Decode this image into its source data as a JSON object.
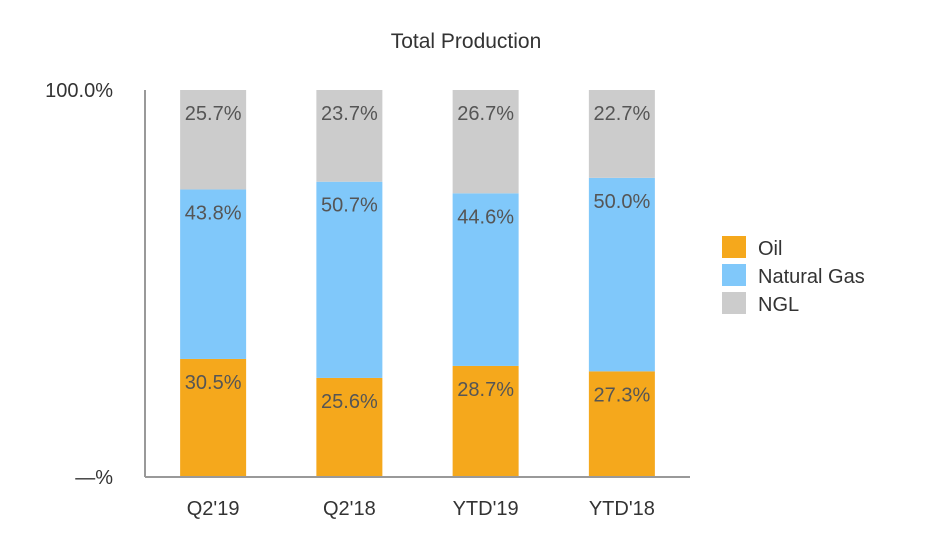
{
  "chart_data": {
    "type": "bar",
    "stacked": true,
    "title": "Total Production",
    "categories": [
      "Q2'19",
      "Q2'18",
      "YTD'19",
      "YTD'18"
    ],
    "series": [
      {
        "name": "Oil",
        "color": "#F5A81C",
        "values": [
          30.5,
          25.6,
          28.7,
          27.3
        ],
        "labels": [
          "30.5%",
          "25.6%",
          "28.7%",
          "27.3%"
        ]
      },
      {
        "name": "Natural Gas",
        "color": "#80C8FA",
        "values": [
          43.8,
          50.7,
          44.6,
          50.0
        ],
        "labels": [
          "43.8%",
          "50.7%",
          "44.6%",
          "50.0%"
        ]
      },
      {
        "name": "NGL",
        "color": "#CCCCCC",
        "values": [
          25.7,
          23.7,
          26.7,
          22.7
        ],
        "labels": [
          "25.7%",
          "23.7%",
          "26.7%",
          "22.7%"
        ]
      }
    ],
    "ylim": [
      0,
      100
    ],
    "yticks": [
      {
        "value": 100,
        "label": "100.0%"
      },
      {
        "value": 0,
        "label": "—%"
      }
    ],
    "xlabel": "",
    "ylabel": "",
    "legend_position": "right"
  }
}
